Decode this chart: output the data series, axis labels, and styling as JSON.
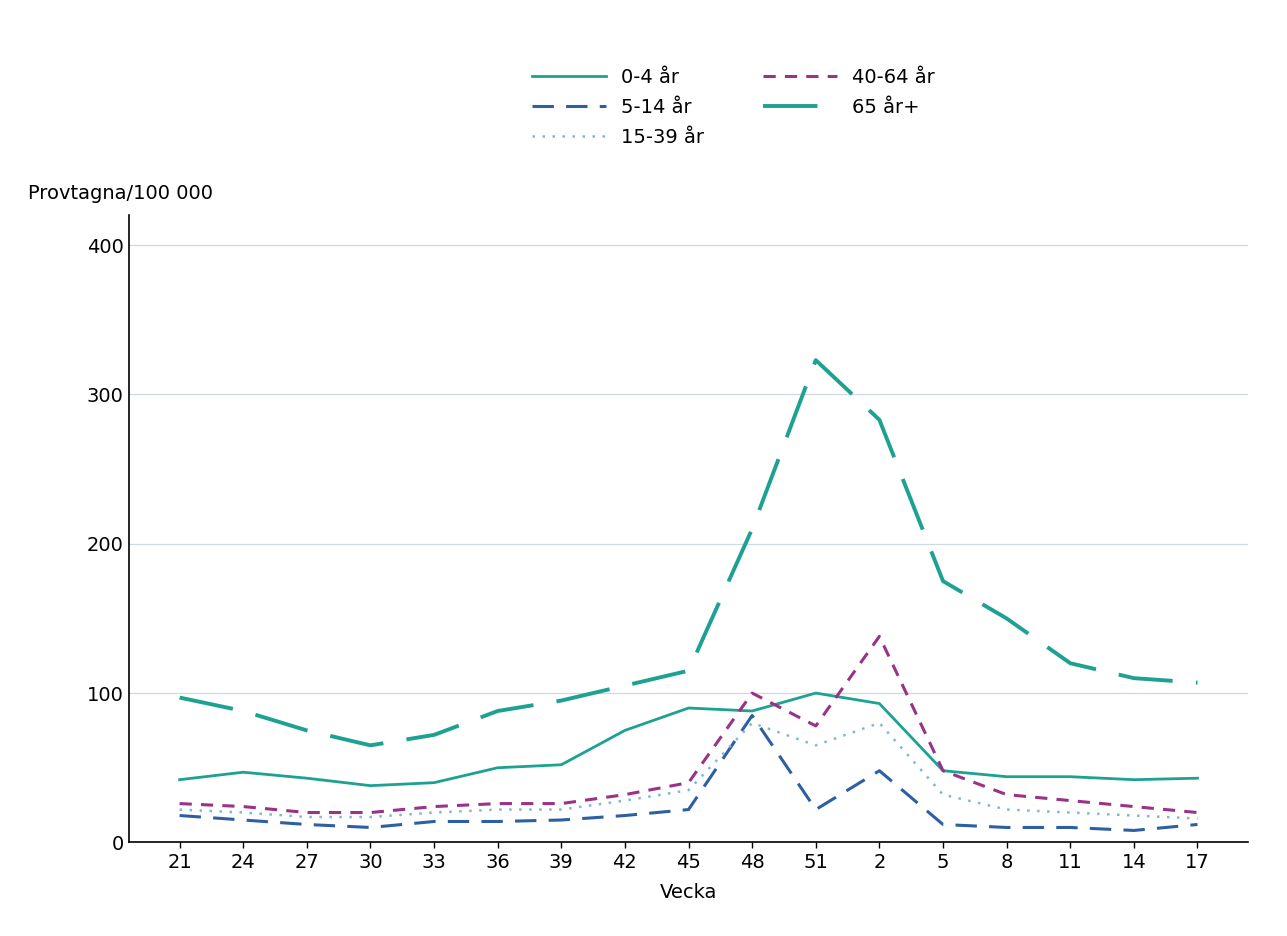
{
  "x_labels": [
    21,
    24,
    27,
    30,
    33,
    36,
    39,
    42,
    45,
    48,
    51,
    2,
    5,
    8,
    11,
    14,
    17
  ],
  "series": {
    "0-4 år": {
      "color": "#1da192",
      "dash": "solid",
      "linewidth": 2.0,
      "values": [
        42,
        47,
        43,
        38,
        40,
        50,
        52,
        75,
        90,
        88,
        100,
        93,
        48,
        44,
        44,
        42,
        43
      ]
    },
    "5-14 år": {
      "color": "#2e5fa3",
      "dash": "dashed_blue",
      "linewidth": 2.2,
      "values": [
        18,
        15,
        12,
        10,
        14,
        14,
        15,
        18,
        22,
        85,
        22,
        48,
        12,
        10,
        10,
        8,
        12
      ]
    },
    "15-39 år": {
      "color": "#7db8d8",
      "dash": "dotted_light",
      "linewidth": 1.8,
      "values": [
        22,
        20,
        17,
        17,
        20,
        22,
        22,
        28,
        35,
        80,
        65,
        80,
        32,
        22,
        20,
        18,
        16
      ]
    },
    "40-64 år": {
      "color": "#993388",
      "dash": "dotted_purple",
      "linewidth": 2.2,
      "values": [
        26,
        24,
        20,
        20,
        24,
        26,
        26,
        32,
        40,
        100,
        78,
        138,
        48,
        32,
        28,
        24,
        20
      ]
    },
    "65 år+": {
      "color": "#1da192",
      "dash": "dashed_large",
      "linewidth": 2.8,
      "values": [
        97,
        88,
        75,
        65,
        72,
        88,
        95,
        105,
        115,
        210,
        323,
        283,
        175,
        150,
        120,
        110,
        107
      ]
    }
  },
  "ylim": [
    0,
    420
  ],
  "yticks": [
    0,
    100,
    200,
    300,
    400
  ],
  "ylabel": "Provtagna/100 000",
  "xlabel": "Vecka",
  "background_color": "#ffffff",
  "grid_color": "#d0d8e0",
  "tick_fontsize": 14,
  "label_fontsize": 14
}
